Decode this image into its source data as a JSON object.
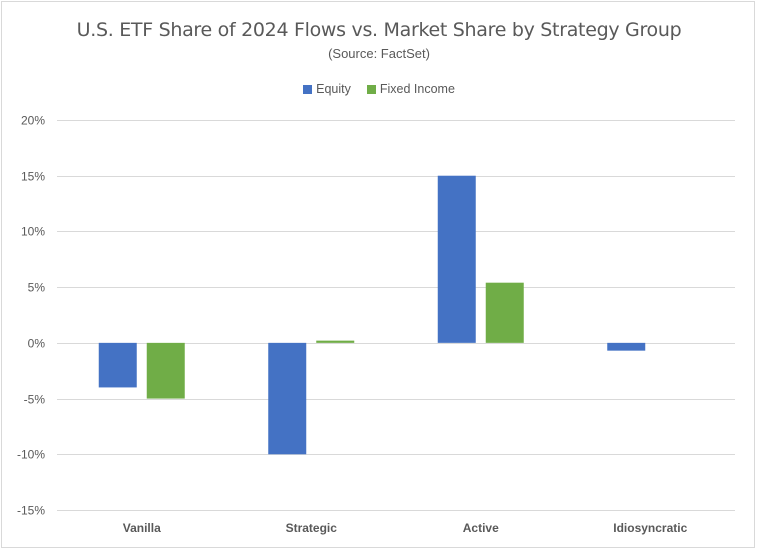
{
  "chart_data": {
    "type": "bar",
    "title": "U.S. ETF Share of 2024 Flows vs. Market Share by Strategy Group",
    "subtitle": "(Source: FactSet)",
    "categories": [
      "Vanilla",
      "Strategic",
      "Active",
      "Idiosyncratic"
    ],
    "series": [
      {
        "name": "Equity",
        "color": "#4472c4",
        "values": [
          -4.0,
          -10.0,
          15.0,
          -0.7
        ]
      },
      {
        "name": "Fixed Income",
        "color": "#70ad47",
        "values": [
          -5.0,
          0.2,
          5.4,
          0.0
        ]
      }
    ],
    "ylim": [
      -15,
      20
    ],
    "yticks": [
      -15,
      -10,
      -5,
      0,
      5,
      10,
      15,
      20
    ],
    "ytick_labels": [
      "-15%",
      "-10%",
      "-5%",
      "0%",
      "5%",
      "10%",
      "15%",
      "20%"
    ],
    "grid": true,
    "legend_position": "top"
  }
}
